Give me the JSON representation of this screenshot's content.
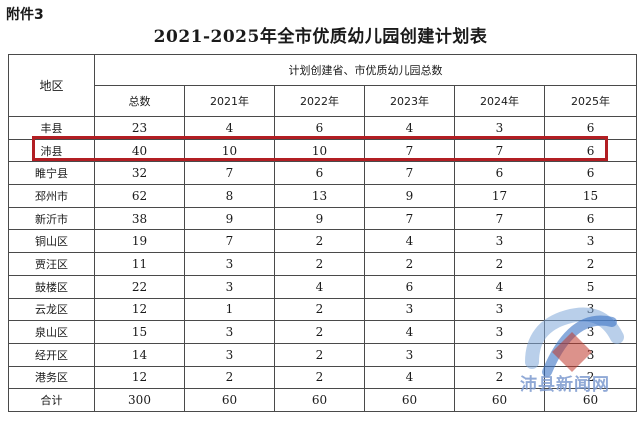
{
  "annex_label": "附件3",
  "title": "2021-2025年全市优质幼儿园创建计划表",
  "table": {
    "region_header": "地区",
    "group_header": "计划创建省、市优质幼儿园总数",
    "columns": [
      "总数",
      "2021年",
      "2022年",
      "2023年",
      "2024年",
      "2025年"
    ],
    "rows": [
      {
        "region": "丰县",
        "values": [
          "23",
          "4",
          "6",
          "4",
          "3",
          "6"
        ]
      },
      {
        "region": "沛县",
        "values": [
          "40",
          "10",
          "10",
          "7",
          "7",
          "6"
        ]
      },
      {
        "region": "睢宁县",
        "values": [
          "32",
          "7",
          "6",
          "7",
          "6",
          "6"
        ]
      },
      {
        "region": "邳州市",
        "values": [
          "62",
          "8",
          "13",
          "9",
          "17",
          "15"
        ]
      },
      {
        "region": "新沂市",
        "values": [
          "38",
          "9",
          "9",
          "7",
          "7",
          "6"
        ]
      },
      {
        "region": "铜山区",
        "values": [
          "19",
          "7",
          "2",
          "4",
          "3",
          "3"
        ]
      },
      {
        "region": "贾汪区",
        "values": [
          "11",
          "3",
          "2",
          "2",
          "2",
          "2"
        ]
      },
      {
        "region": "鼓楼区",
        "values": [
          "22",
          "3",
          "4",
          "6",
          "4",
          "5"
        ]
      },
      {
        "region": "云龙区",
        "values": [
          "12",
          "1",
          "2",
          "3",
          "3",
          "3"
        ]
      },
      {
        "region": "泉山区",
        "values": [
          "15",
          "3",
          "2",
          "4",
          "3",
          "3"
        ]
      },
      {
        "region": "经开区",
        "values": [
          "14",
          "3",
          "2",
          "3",
          "3",
          "3"
        ]
      },
      {
        "region": "港务区",
        "values": [
          "12",
          "2",
          "2",
          "4",
          "2",
          "2"
        ]
      },
      {
        "region": "合计",
        "values": [
          "300",
          "60",
          "60",
          "60",
          "60",
          "60"
        ]
      }
    ]
  },
  "highlight_row": "沛县",
  "highlight_color": "#b21e23",
  "watermark": {
    "text": "沛县新闻网",
    "colors": [
      "#c0392b",
      "#3a73c4",
      "#7fa8d8"
    ]
  }
}
